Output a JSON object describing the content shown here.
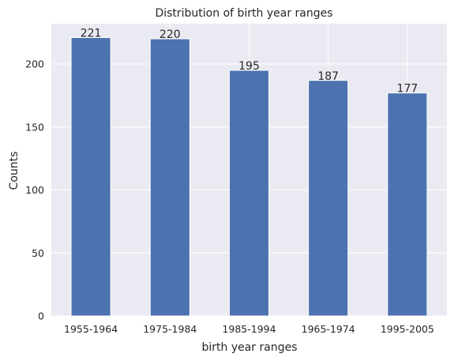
{
  "chart_data": {
    "type": "bar",
    "title": "Distribution of birth year ranges",
    "xlabel": "birth year ranges",
    "ylabel": "Counts",
    "categories": [
      "1955-1964",
      "1975-1984",
      "1985-1994",
      "1965-1974",
      "1995-2005"
    ],
    "values": [
      221,
      220,
      195,
      187,
      177
    ],
    "data_labels": [
      "221",
      "220",
      "195",
      "187",
      "177"
    ],
    "ylim": [
      0,
      232
    ],
    "yticks": [
      0,
      50,
      100,
      150,
      200
    ],
    "ytick_labels": [
      "0",
      "50",
      "100",
      "150",
      "200"
    ],
    "grid": true,
    "legend": "none",
    "colors": {
      "bar": "#4c72b0",
      "plot_background": "#eaeaf2",
      "grid": "#ffffff",
      "text": "#262626"
    }
  }
}
